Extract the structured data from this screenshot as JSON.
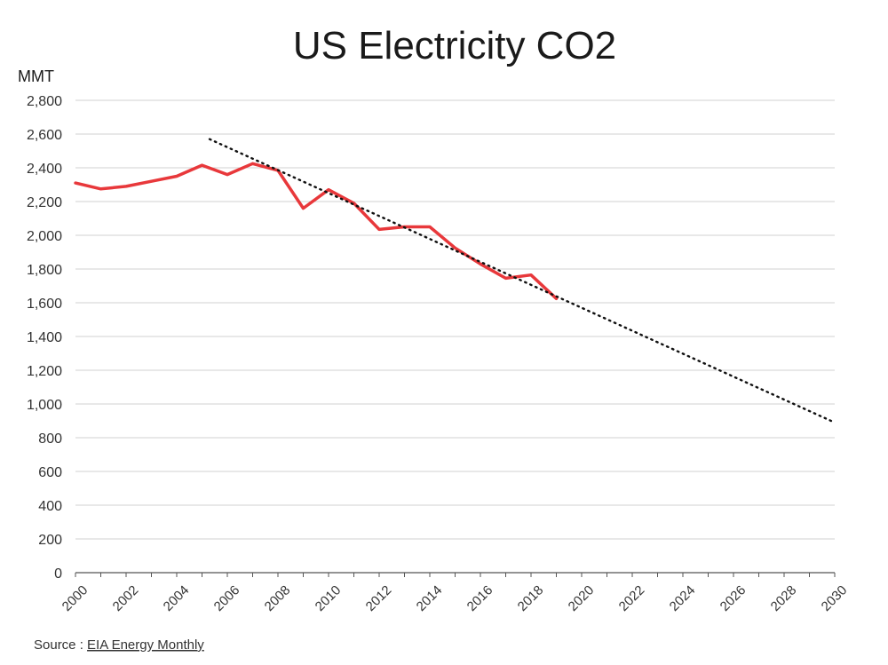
{
  "chart_data": {
    "type": "line",
    "title": "US Electricity CO2",
    "ylabel": "MMT",
    "xlabel": "",
    "xlim": [
      2000,
      2030
    ],
    "ylim": [
      0,
      2800
    ],
    "yticks": [
      0,
      200,
      400,
      600,
      800,
      1000,
      1200,
      1400,
      1600,
      1800,
      2000,
      2200,
      2400,
      2600,
      2800
    ],
    "ytick_labels": [
      "0",
      "200",
      "400",
      "600",
      "800",
      "1,000",
      "1,200",
      "1,400",
      "1,600",
      "1,800",
      "2,000",
      "2,200",
      "2,400",
      "2,600",
      "2,800"
    ],
    "xticks": [
      2000,
      2002,
      2004,
      2006,
      2008,
      2010,
      2012,
      2014,
      2016,
      2018,
      2020,
      2022,
      2024,
      2026,
      2028,
      2030
    ],
    "xtick_labels": [
      "2000",
      "2002",
      "2004",
      "2006",
      "2008",
      "2010",
      "2012",
      "2014",
      "2016",
      "2018",
      "2020",
      "2022",
      "2024",
      "2026",
      "2028",
      "2030"
    ],
    "grid": "horizontal",
    "series": [
      {
        "style": "solid",
        "color": "#e8383b",
        "x": [
          2000,
          2001,
          2002,
          2003,
          2004,
          2005,
          2006,
          2007,
          2008,
          2009,
          2010,
          2011,
          2012,
          2013,
          2014,
          2015,
          2016,
          2017,
          2018,
          2019
        ],
        "values": [
          2310,
          2275,
          2290,
          2320,
          2350,
          2415,
          2360,
          2425,
          2385,
          2160,
          2270,
          2190,
          2035,
          2050,
          2050,
          1925,
          1830,
          1745,
          1765,
          1625
        ]
      },
      {
        "style": "dotted",
        "color": "#111111",
        "x": [
          2005.3,
          2030
        ],
        "values": [
          2570,
          890
        ]
      }
    ]
  },
  "source": {
    "prefix": "Source  :",
    "link_text": "EIA Energy Monthly"
  }
}
